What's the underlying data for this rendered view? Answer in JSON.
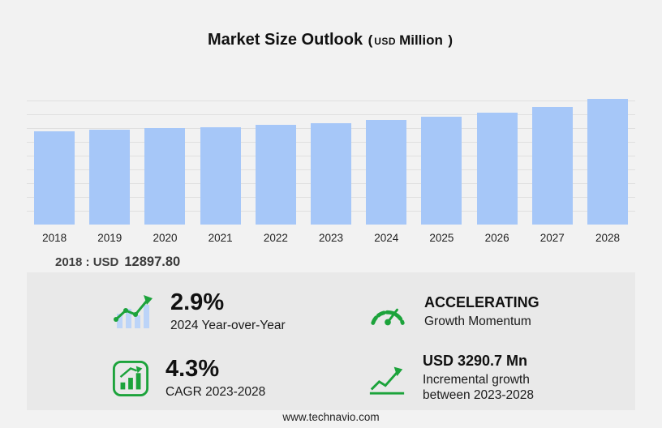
{
  "title": {
    "main": "Market Size Outlook",
    "open": "(",
    "currency": "USD",
    "unit": "Million",
    "close": ")"
  },
  "chart_data": {
    "type": "bar",
    "title": "Market Size Outlook (USD Million)",
    "categories": [
      "2018",
      "2019",
      "2020",
      "2021",
      "2022",
      "2023",
      "2024",
      "2025",
      "2026",
      "2027",
      "2028"
    ],
    "values": [
      12897.8,
      13150,
      13310,
      13500,
      13780,
      14060,
      14467,
      14950,
      15520,
      16280,
      17350
    ],
    "xlabel": "",
    "ylabel": "USD Million",
    "ylim": [
      0,
      18500
    ],
    "grid": true,
    "legend": "none",
    "annotation": "2018 : USD 12897.80"
  },
  "annotation": {
    "label": "2018 : USD",
    "value": "12897.80"
  },
  "stats": [
    {
      "icon": "yoy-bar-chart-icon",
      "value": "2.9%",
      "label": "2024 Year-over-Year"
    },
    {
      "icon": "speedometer-icon",
      "value": "ACCELERATING",
      "label": "Growth Momentum"
    },
    {
      "icon": "cagr-chart-icon",
      "value": "4.3%",
      "label": "CAGR 2023-2028"
    },
    {
      "icon": "incremental-growth-icon",
      "value": "USD 3290.7 Mn",
      "label": "Incremental growth between 2023-2028"
    }
  ],
  "footer": {
    "url": "www.technavio.com"
  },
  "colors": {
    "bar": "#a6c7f8",
    "accent_green": "#1ca33b",
    "panel_bg": "#e9e9e9",
    "page_bg": "#f2f2f2"
  }
}
